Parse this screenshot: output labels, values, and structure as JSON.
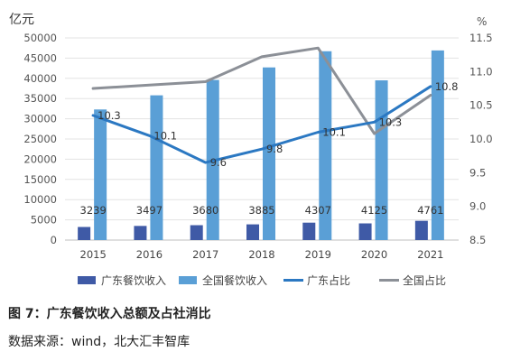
{
  "caption": "图 7：广东餐饮收入总额及占社消比",
  "source": "数据来源：wind，北大汇丰智库",
  "chart_data": {
    "type": "bar",
    "categories": [
      "2015",
      "2016",
      "2017",
      "2018",
      "2019",
      "2020",
      "2021"
    ],
    "left_axis": {
      "unit": "亿元",
      "ylim": [
        0,
        50000
      ],
      "ticks": [
        "0",
        "5000",
        "10000",
        "15000",
        "20000",
        "25000",
        "30000",
        "35000",
        "40000",
        "45000",
        "50000"
      ]
    },
    "right_axis": {
      "unit": "%",
      "ylim": [
        8.5,
        11.5
      ],
      "ticks": [
        "8.5",
        "9.0",
        "9.5",
        "10.0",
        "10.5",
        "11.0",
        "11.5"
      ]
    },
    "series": [
      {
        "name": "广东餐饮收入",
        "kind": "bar",
        "axis": "left",
        "color": "#3f5aa6",
        "values": [
          3239,
          3497,
          3680,
          3885,
          4307,
          4125,
          4761
        ],
        "labels": [
          "3239",
          "3497",
          "3680",
          "3885",
          "4307",
          "4125",
          "4761"
        ]
      },
      {
        "name": "全国餐饮收入",
        "kind": "bar",
        "axis": "left",
        "color": "#5a9fd6",
        "values": [
          32300,
          35800,
          39600,
          42700,
          46700,
          39500,
          46900
        ]
      },
      {
        "name": "广东占比",
        "kind": "line",
        "axis": "right",
        "color": "#2b78c2",
        "values": [
          10.35,
          10.05,
          9.65,
          9.85,
          10.1,
          10.25,
          10.78
        ],
        "labels": [
          "10.3",
          "10.1",
          "9.6",
          "9.8",
          "10.1",
          "10.3",
          "10.8"
        ]
      },
      {
        "name": "全国占比",
        "kind": "line",
        "axis": "right",
        "color": "#8c9097",
        "values": [
          10.75,
          10.8,
          10.85,
          11.22,
          11.35,
          10.08,
          10.65
        ]
      }
    ],
    "grid": true,
    "legend": "bottom"
  }
}
